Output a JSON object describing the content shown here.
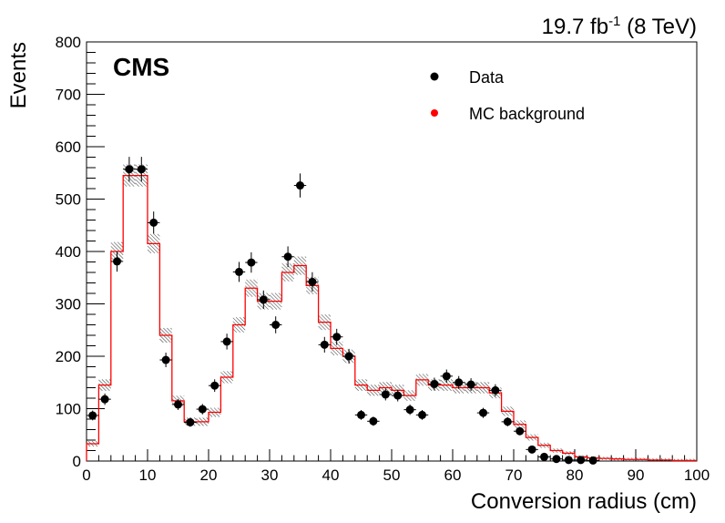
{
  "chart_data": {
    "type": "histogram",
    "experiment_label": "CMS",
    "luminosity_label": {
      "value": "19.7 fb",
      "superscript": "-1",
      "energy": "(8 TeV)"
    },
    "xlabel": "Conversion radius (cm)",
    "ylabel": "Events",
    "xlim": [
      0,
      100
    ],
    "ylim": [
      0,
      800
    ],
    "x_ticks": [
      "0",
      "10",
      "20",
      "30",
      "40",
      "50",
      "60",
      "70",
      "80",
      "90",
      "100"
    ],
    "y_ticks": [
      "0",
      "100",
      "200",
      "300",
      "400",
      "500",
      "600",
      "700",
      "800"
    ],
    "legend": {
      "placement": "top-right",
      "entries": [
        {
          "label": "Data",
          "color": "#000000"
        },
        {
          "label": "MC background",
          "color": "#ff0000"
        }
      ]
    },
    "bin_width": 2,
    "series": [
      {
        "name": "Data",
        "marker": "circle",
        "color": "#000000",
        "x": [
          1,
          3,
          5,
          7,
          9,
          11,
          13,
          15,
          17,
          19,
          21,
          23,
          25,
          27,
          29,
          31,
          33,
          35,
          37,
          39,
          41,
          43,
          45,
          47,
          49,
          51,
          53,
          55,
          57,
          59,
          61,
          63,
          65,
          67,
          69,
          71,
          73,
          75,
          77,
          79,
          81,
          83
        ],
        "values": [
          87,
          118,
          381,
          557,
          557,
          455,
          193,
          108,
          74,
          99,
          144,
          228,
          361,
          379,
          308,
          260,
          390,
          526,
          342,
          222,
          237,
          200,
          88,
          76,
          127,
          125,
          98,
          88,
          147,
          162,
          150,
          146,
          92,
          135,
          75,
          57,
          22,
          8,
          4,
          2,
          2,
          1
        ]
      },
      {
        "name": "MC background",
        "style": "step",
        "color": "#ff0000",
        "x": [
          1,
          3,
          5,
          7,
          9,
          11,
          13,
          15,
          17,
          19,
          21,
          23,
          25,
          27,
          29,
          31,
          33,
          35,
          37,
          39,
          41,
          43,
          45,
          47,
          49,
          51,
          53,
          55,
          57,
          59,
          61,
          63,
          65,
          67,
          69,
          71,
          73,
          75,
          77,
          79,
          81,
          83,
          85,
          87,
          89,
          91,
          93,
          95,
          97,
          99
        ],
        "values": [
          33,
          145,
          400,
          545,
          545,
          415,
          240,
          115,
          75,
          75,
          93,
          160,
          260,
          330,
          305,
          305,
          360,
          373,
          335,
          265,
          215,
          200,
          145,
          135,
          140,
          135,
          125,
          155,
          145,
          145,
          140,
          140,
          140,
          130,
          95,
          70,
          45,
          30,
          20,
          15,
          8,
          6,
          5,
          4,
          3,
          3,
          2,
          2,
          1,
          1
        ]
      }
    ]
  }
}
